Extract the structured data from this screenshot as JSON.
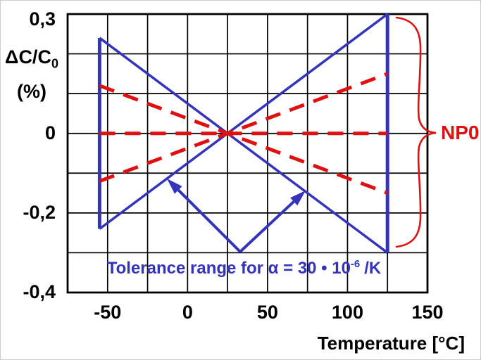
{
  "chart_data": {
    "type": "line",
    "xlabel": "Temperature [°C]",
    "ylabel_main": "ΔC/C",
    "ylabel_sub": "0",
    "ylabel_unit": "(%)",
    "xlim": [
      -75,
      150
    ],
    "ylim": [
      -0.4,
      0.3
    ],
    "x_grid_step": 25,
    "y_grid_step": 0.1,
    "grid": "on",
    "x_ticks": [
      {
        "value": -50,
        "label": "-50"
      },
      {
        "value": 0,
        "label": "0"
      },
      {
        "value": 50,
        "label": "50"
      },
      {
        "value": 100,
        "label": "100"
      },
      {
        "value": 150,
        "label": "150"
      }
    ],
    "y_ticks": [
      {
        "value": 0.3,
        "label": "0,3"
      },
      {
        "value": 0,
        "label": "0"
      },
      {
        "value": -0.2,
        "label": "-0,2"
      },
      {
        "value": -0.4,
        "label": "-0,4"
      }
    ],
    "series": [
      {
        "name": "tolerance-upper-edge",
        "style": "solid",
        "color": "#3333bb",
        "slope_ppm_per_k": 30,
        "points": [
          [
            -55,
            -0.24
          ],
          [
            125,
            0.3
          ]
        ]
      },
      {
        "name": "tolerance-lower-edge",
        "style": "solid",
        "color": "#3333bb",
        "slope_ppm_per_k": -30,
        "points": [
          [
            -55,
            0.24
          ],
          [
            125,
            -0.3
          ]
        ]
      },
      {
        "name": "tolerance-left-cap",
        "style": "solid",
        "color": "#3333bb",
        "points": [
          [
            -55,
            -0.24
          ],
          [
            -55,
            0.24
          ]
        ]
      },
      {
        "name": "tolerance-right-cap",
        "style": "solid",
        "color": "#3333bb",
        "points": [
          [
            125,
            -0.3
          ],
          [
            125,
            0.3
          ]
        ]
      },
      {
        "name": "np0-example-positive",
        "style": "dashed",
        "color": "#dd1111",
        "slope_ppm_per_k": 15,
        "points": [
          [
            -55,
            -0.12
          ],
          [
            125,
            0.15
          ]
        ]
      },
      {
        "name": "np0-example-flat",
        "style": "dashed",
        "color": "#dd1111",
        "slope_ppm_per_k": 0,
        "points": [
          [
            -55,
            0
          ],
          [
            125,
            0
          ]
        ]
      },
      {
        "name": "np0-example-negative",
        "style": "dashed",
        "color": "#dd1111",
        "slope_ppm_per_k": -15,
        "points": [
          [
            -55,
            0.12
          ],
          [
            125,
            -0.15
          ]
        ]
      }
    ],
    "annotations": {
      "crossing_point": [
        25,
        0
      ],
      "tolerance_range_c": [
        -55,
        125
      ],
      "tolerance": {
        "text": "Tolerance range for α = 30 • 10",
        "sup": "-6",
        "tail": "/K"
      },
      "np0": {
        "text": "NP0"
      }
    },
    "colors": {
      "tolerance_blue": "#3333bb",
      "np0_red": "#dd1111",
      "grid": "#000000",
      "background": "#ffffff"
    }
  }
}
